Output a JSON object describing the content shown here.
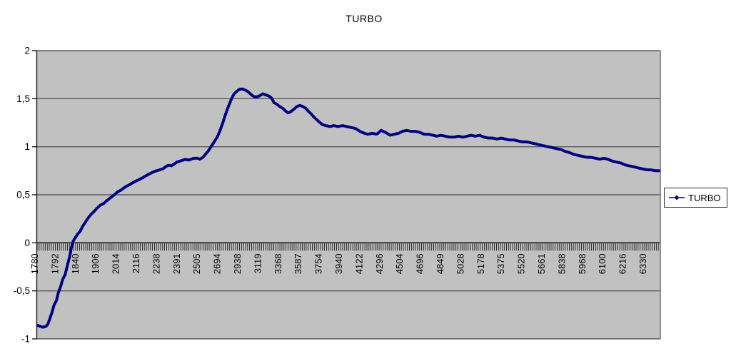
{
  "colors": {
    "series_line": "#000080",
    "plot_background": "#c1c1c1",
    "gridline": "#595959",
    "axis_line": "#1a1a1a",
    "plot_right_border": "#8c8c8c",
    "text": "#000000",
    "legend_background": "#ffffff",
    "legend_border": "#2b2b2b"
  },
  "chart_data": {
    "type": "line",
    "title": "TURBO",
    "legend": {
      "label": "TURBO",
      "position": "right",
      "marker": "diamond-on-line"
    },
    "grid": {
      "horizontal": true,
      "vertical": false
    },
    "plot_background": "#c1c1c1",
    "x_axis": {
      "type": "category",
      "category_tick_count": 308,
      "label_rotation_deg": 90,
      "tick_labels": [
        "1780",
        "1792",
        "1840",
        "1906",
        "2014",
        "2116",
        "2238",
        "2391",
        "2505",
        "2694",
        "2938",
        "3119",
        "3368",
        "3587",
        "3754",
        "3940",
        "4122",
        "4296",
        "4504",
        "4696",
        "4849",
        "5028",
        "5178",
        "5375",
        "5520",
        "5661",
        "5838",
        "5968",
        "6100",
        "6216",
        "6330"
      ]
    },
    "y_axis": {
      "min": -1,
      "max": 2,
      "tick_step": 0.5,
      "decimal_separator": ",",
      "tick_values": [
        2,
        1.5,
        1,
        0.5,
        0,
        -0.5,
        -1
      ],
      "tick_labels": [
        "2",
        "1,5",
        "1",
        "0,5",
        "0",
        "-0,5",
        "-1"
      ]
    },
    "series": [
      {
        "name": "TURBO",
        "color": "#000080",
        "marker": "diamond",
        "x_unit": "fraction_of_category_axis",
        "points": [
          [
            0.001,
            -0.86
          ],
          [
            0.005,
            -0.87
          ],
          [
            0.009,
            -0.88
          ],
          [
            0.014,
            -0.87
          ],
          [
            0.017,
            -0.85
          ],
          [
            0.021,
            -0.78
          ],
          [
            0.024,
            -0.72
          ],
          [
            0.027,
            -0.65
          ],
          [
            0.031,
            -0.6
          ],
          [
            0.034,
            -0.52
          ],
          [
            0.038,
            -0.45
          ],
          [
            0.041,
            -0.38
          ],
          [
            0.045,
            -0.33
          ],
          [
            0.048,
            -0.25
          ],
          [
            0.052,
            -0.15
          ],
          [
            0.055,
            -0.05
          ],
          [
            0.058,
            0.02
          ],
          [
            0.062,
            0.06
          ],
          [
            0.065,
            0.09
          ],
          [
            0.069,
            0.12
          ],
          [
            0.073,
            0.17
          ],
          [
            0.078,
            0.22
          ],
          [
            0.082,
            0.26
          ],
          [
            0.087,
            0.3
          ],
          [
            0.092,
            0.33
          ],
          [
            0.096,
            0.36
          ],
          [
            0.101,
            0.39
          ],
          [
            0.107,
            0.41
          ],
          [
            0.112,
            0.44
          ],
          [
            0.118,
            0.47
          ],
          [
            0.124,
            0.5
          ],
          [
            0.129,
            0.53
          ],
          [
            0.135,
            0.55
          ],
          [
            0.141,
            0.58
          ],
          [
            0.147,
            0.6
          ],
          [
            0.152,
            0.62
          ],
          [
            0.158,
            0.64
          ],
          [
            0.164,
            0.66
          ],
          [
            0.17,
            0.68
          ],
          [
            0.175,
            0.7
          ],
          [
            0.181,
            0.72
          ],
          [
            0.187,
            0.74
          ],
          [
            0.192,
            0.75
          ],
          [
            0.197,
            0.76
          ],
          [
            0.202,
            0.77
          ],
          [
            0.206,
            0.79
          ],
          [
            0.211,
            0.81
          ],
          [
            0.215,
            0.8
          ],
          [
            0.22,
            0.82
          ],
          [
            0.224,
            0.84
          ],
          [
            0.229,
            0.85
          ],
          [
            0.234,
            0.86
          ],
          [
            0.238,
            0.87
          ],
          [
            0.243,
            0.86
          ],
          [
            0.247,
            0.87
          ],
          [
            0.252,
            0.88
          ],
          [
            0.257,
            0.88
          ],
          [
            0.261,
            0.87
          ],
          [
            0.266,
            0.89
          ],
          [
            0.27,
            0.92
          ],
          [
            0.275,
            0.96
          ],
          [
            0.279,
            1.0
          ],
          [
            0.284,
            1.05
          ],
          [
            0.289,
            1.1
          ],
          [
            0.293,
            1.16
          ],
          [
            0.298,
            1.25
          ],
          [
            0.302,
            1.33
          ],
          [
            0.307,
            1.42
          ],
          [
            0.312,
            1.5
          ],
          [
            0.316,
            1.55
          ],
          [
            0.321,
            1.58
          ],
          [
            0.325,
            1.6
          ],
          [
            0.33,
            1.6
          ],
          [
            0.334,
            1.59
          ],
          [
            0.339,
            1.57
          ],
          [
            0.344,
            1.54
          ],
          [
            0.348,
            1.52
          ],
          [
            0.353,
            1.52
          ],
          [
            0.357,
            1.53
          ],
          [
            0.362,
            1.55
          ],
          [
            0.367,
            1.54
          ],
          [
            0.371,
            1.53
          ],
          [
            0.376,
            1.51
          ],
          [
            0.38,
            1.46
          ],
          [
            0.385,
            1.44
          ],
          [
            0.389,
            1.42
          ],
          [
            0.394,
            1.4
          ],
          [
            0.399,
            1.37
          ],
          [
            0.403,
            1.35
          ],
          [
            0.408,
            1.37
          ],
          [
            0.412,
            1.39
          ],
          [
            0.417,
            1.42
          ],
          [
            0.422,
            1.43
          ],
          [
            0.426,
            1.42
          ],
          [
            0.431,
            1.4
          ],
          [
            0.435,
            1.37
          ],
          [
            0.44,
            1.34
          ],
          [
            0.444,
            1.31
          ],
          [
            0.449,
            1.28
          ],
          [
            0.454,
            1.25
          ],
          [
            0.458,
            1.23
          ],
          [
            0.463,
            1.22
          ],
          [
            0.47,
            1.21
          ],
          [
            0.476,
            1.22
          ],
          [
            0.483,
            1.21
          ],
          [
            0.49,
            1.22
          ],
          [
            0.497,
            1.21
          ],
          [
            0.504,
            1.2
          ],
          [
            0.511,
            1.19
          ],
          [
            0.518,
            1.16
          ],
          [
            0.525,
            1.14
          ],
          [
            0.531,
            1.13
          ],
          [
            0.538,
            1.14
          ],
          [
            0.545,
            1.13
          ],
          [
            0.552,
            1.17
          ],
          [
            0.559,
            1.15
          ],
          [
            0.566,
            1.12
          ],
          [
            0.573,
            1.13
          ],
          [
            0.58,
            1.14
          ],
          [
            0.586,
            1.16
          ],
          [
            0.593,
            1.17
          ],
          [
            0.6,
            1.16
          ],
          [
            0.607,
            1.16
          ],
          [
            0.614,
            1.15
          ],
          [
            0.621,
            1.13
          ],
          [
            0.628,
            1.13
          ],
          [
            0.635,
            1.12
          ],
          [
            0.641,
            1.11
          ],
          [
            0.648,
            1.12
          ],
          [
            0.655,
            1.11
          ],
          [
            0.662,
            1.1
          ],
          [
            0.669,
            1.1
          ],
          [
            0.676,
            1.11
          ],
          [
            0.683,
            1.1
          ],
          [
            0.69,
            1.11
          ],
          [
            0.696,
            1.12
          ],
          [
            0.703,
            1.11
          ],
          [
            0.71,
            1.12
          ],
          [
            0.717,
            1.1
          ],
          [
            0.724,
            1.09
          ],
          [
            0.731,
            1.09
          ],
          [
            0.738,
            1.08
          ],
          [
            0.745,
            1.09
          ],
          [
            0.751,
            1.08
          ],
          [
            0.758,
            1.07
          ],
          [
            0.765,
            1.07
          ],
          [
            0.772,
            1.06
          ],
          [
            0.779,
            1.05
          ],
          [
            0.786,
            1.05
          ],
          [
            0.793,
            1.04
          ],
          [
            0.8,
            1.03
          ],
          [
            0.806,
            1.02
          ],
          [
            0.813,
            1.01
          ],
          [
            0.82,
            1.0
          ],
          [
            0.827,
            0.99
          ],
          [
            0.834,
            0.98
          ],
          [
            0.841,
            0.97
          ],
          [
            0.848,
            0.95
          ],
          [
            0.854,
            0.94
          ],
          [
            0.861,
            0.92
          ],
          [
            0.868,
            0.91
          ],
          [
            0.875,
            0.9
          ],
          [
            0.882,
            0.89
          ],
          [
            0.889,
            0.89
          ],
          [
            0.896,
            0.88
          ],
          [
            0.903,
            0.87
          ],
          [
            0.909,
            0.88
          ],
          [
            0.916,
            0.87
          ],
          [
            0.923,
            0.85
          ],
          [
            0.93,
            0.84
          ],
          [
            0.937,
            0.83
          ],
          [
            0.944,
            0.81
          ],
          [
            0.951,
            0.8
          ],
          [
            0.958,
            0.79
          ],
          [
            0.964,
            0.78
          ],
          [
            0.971,
            0.77
          ],
          [
            0.978,
            0.76
          ],
          [
            0.985,
            0.76
          ],
          [
            0.992,
            0.75
          ],
          [
            0.999,
            0.75
          ]
        ]
      }
    ]
  }
}
